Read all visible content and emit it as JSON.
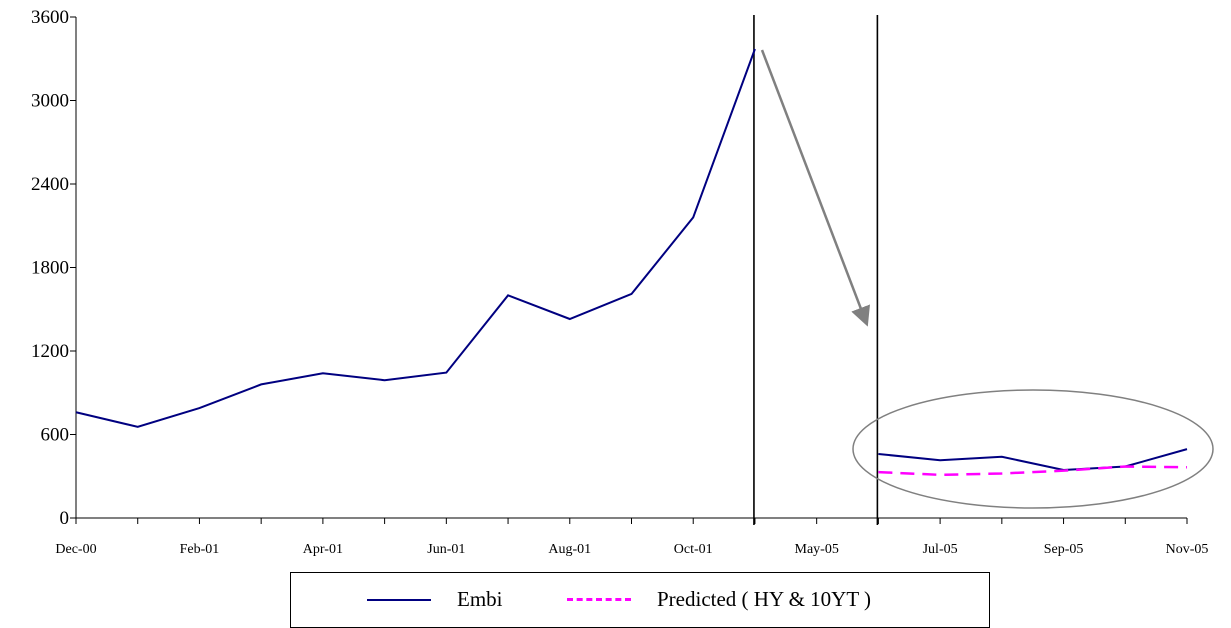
{
  "chart_data": {
    "type": "line",
    "categories": [
      "Dec-00",
      "",
      "Feb-01",
      "",
      "Apr-01",
      "",
      "Jun-01",
      "",
      "Aug-01",
      "",
      "Oct-01",
      "",
      "May-05",
      "",
      "Jul-05",
      "",
      "Sep-05",
      "",
      "Nov-05"
    ],
    "ylim": [
      0,
      3600
    ],
    "yticks": [
      0,
      600,
      1200,
      1800,
      2400,
      3000,
      3600
    ],
    "grid": false,
    "legend_position": "bottom",
    "series": [
      {
        "name": "Embi",
        "color": "#000080",
        "style": "solid",
        "segments": [
          {
            "start": 0,
            "values": [
              760,
              655,
              790,
              960,
              1040,
              990,
              1045,
              1600,
              1430,
              1610,
              2160,
              3370
            ]
          },
          {
            "start": 13,
            "values": [
              460,
              415,
              440,
              345,
              370,
              495
            ]
          }
        ]
      },
      {
        "name": "Predicted ( HY  & 10YT  )",
        "color": "#ff00ff",
        "style": "dashed",
        "segments": [
          {
            "start": 13,
            "values": [
              330,
              310,
              320,
              340,
              370,
              365
            ]
          }
        ]
      }
    ],
    "vertical_lines_at": [
      11,
      13
    ],
    "annotations": {
      "arrow_color": "#808080",
      "ellipse_color": "#808080"
    }
  }
}
